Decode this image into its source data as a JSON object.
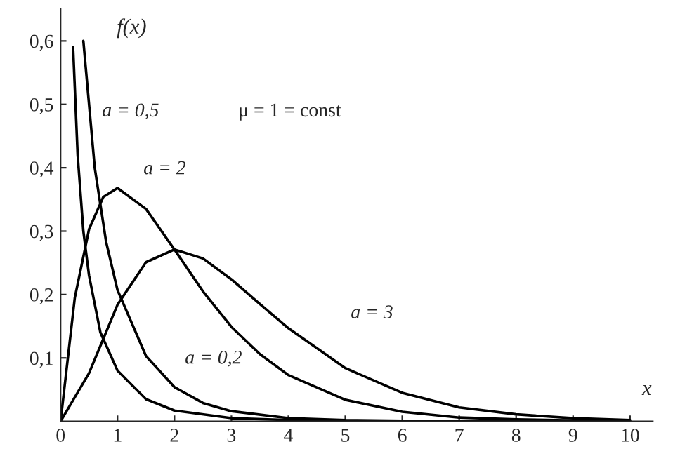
{
  "chart_data": {
    "type": "line",
    "xlabel": "x",
    "ylabel": "f(x)",
    "series": [
      {
        "color": "#000000",
        "x": [
          0.22,
          0.3,
          0.4,
          0.5,
          0.7,
          1,
          1.5,
          2,
          3,
          4,
          5,
          6,
          10
        ],
        "values": [
          0.59,
          0.42,
          0.3,
          0.23,
          0.14,
          0.08,
          0.035,
          0.017,
          0.005,
          0.002,
          0.001,
          0,
          0
        ]
      },
      {
        "color": "#000000",
        "x": [
          0.4,
          0.6,
          0.8,
          1,
          1.5,
          2,
          2.5,
          3,
          4,
          5,
          6,
          7,
          10
        ],
        "values": [
          0.6,
          0.4,
          0.283,
          0.207,
          0.103,
          0.054,
          0.029,
          0.016,
          0.005,
          0.002,
          0.001,
          0,
          0
        ]
      },
      {
        "color": "#000000",
        "x": [
          0,
          0.25,
          0.5,
          0.75,
          1,
          1.5,
          2,
          2.5,
          3,
          3.5,
          4,
          5,
          6,
          7,
          8,
          10
        ],
        "values": [
          0,
          0.195,
          0.303,
          0.354,
          0.368,
          0.335,
          0.271,
          0.205,
          0.149,
          0.106,
          0.073,
          0.034,
          0.015,
          0.006,
          0.003,
          0
        ]
      },
      {
        "color": "#000000",
        "x": [
          0,
          0.5,
          1,
          1.5,
          2,
          2.5,
          3,
          3.5,
          4,
          5,
          6,
          7,
          8,
          9,
          10
        ],
        "values": [
          0,
          0.076,
          0.184,
          0.251,
          0.271,
          0.257,
          0.224,
          0.185,
          0.147,
          0.084,
          0.045,
          0.022,
          0.011,
          0.005,
          0.002
        ]
      }
    ],
    "xlim": [
      0,
      10.4
    ],
    "ylim": [
      0,
      0.65
    ],
    "xticks": [
      0,
      1,
      2,
      3,
      4,
      5,
      6,
      7,
      8,
      9,
      10
    ],
    "yticks": [
      {
        "value": 0.1,
        "label": "0,1"
      },
      {
        "value": 0.2,
        "label": "0,2"
      },
      {
        "value": 0.3,
        "label": "0,3"
      },
      {
        "value": 0.4,
        "label": "0,4"
      },
      {
        "value": 0.5,
        "label": "0,5"
      },
      {
        "value": 0.6,
        "label": "0,6"
      }
    ],
    "annotations": [
      "a = 0,5",
      "a = 2",
      "a = 3",
      "a = 0,2",
      "μ = 1 = const"
    ],
    "grid": false
  }
}
